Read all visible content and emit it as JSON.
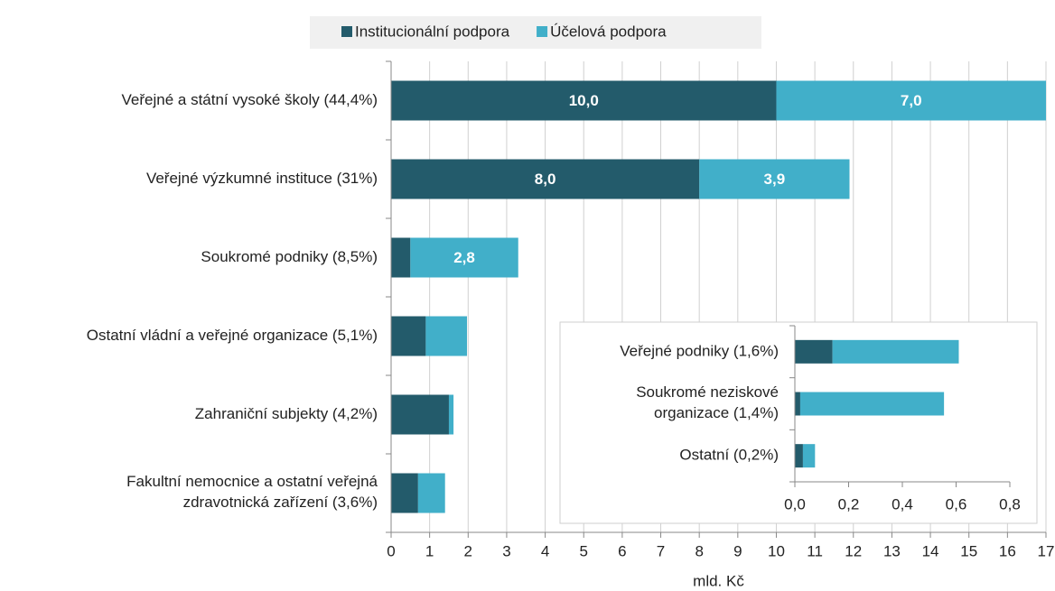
{
  "chart_data": [
    {
      "type": "bar",
      "orientation": "horizontal",
      "stacked": true,
      "grid": true,
      "xlabel": "mld. Kč",
      "categories": [
        "Veřejné a státní vysoké školy (44,4%)",
        "Veřejné výzkumné instituce (31%)",
        "Soukromé podniky (8,5%)",
        "Ostatní vládní a veřejné organizace (5,1%)",
        "Zahraniční subjekty (4,2%)",
        "Fakultní nemocnice a ostatní veřejná\nzdravotnická zařízení (3,6%)"
      ],
      "series": [
        {
          "name": "Institucionální podpora",
          "color": "#235b6b",
          "values": [
            10.0,
            8.0,
            0.5,
            0.9,
            1.5,
            0.7
          ],
          "value_labels": [
            "10,0",
            "8,0",
            null,
            null,
            null,
            null
          ]
        },
        {
          "name": "Účelová podpora",
          "color": "#41afc9",
          "values": [
            7.0,
            3.9,
            2.8,
            1.07,
            0.12,
            0.7
          ],
          "value_labels": [
            "7,0",
            "3,9",
            "2,8",
            null,
            null,
            null
          ]
        }
      ],
      "xlim": [
        0,
        17
      ],
      "xticks": [
        0,
        1,
        2,
        3,
        4,
        5,
        6,
        7,
        8,
        9,
        10,
        11,
        12,
        13,
        14,
        15,
        16,
        17
      ]
    },
    {
      "type": "bar",
      "orientation": "horizontal",
      "stacked": true,
      "grid": false,
      "categories": [
        "Veřejné podniky (1,6%)",
        "Soukromé neziskové\norganizace (1,4%)",
        "Ostatní (0,2%)"
      ],
      "series": [
        {
          "color": "#235b6b",
          "values": [
            0.14,
            0.02,
            0.03
          ]
        },
        {
          "color": "#41afc9",
          "values": [
            0.47,
            0.535,
            0.045
          ]
        }
      ],
      "xlim": [
        0,
        0.8
      ],
      "xticks": [
        {
          "value": 0,
          "label": "0,0"
        },
        {
          "value": 0.2,
          "label": "0,2"
        },
        {
          "value": 0.4,
          "label": "0,4"
        },
        {
          "value": 0.6,
          "label": "0,6"
        },
        {
          "value": 0.8,
          "label": "0,8"
        }
      ]
    }
  ]
}
